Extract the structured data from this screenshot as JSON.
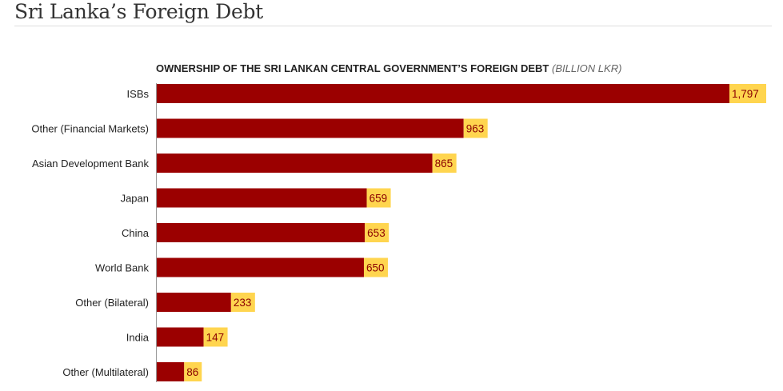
{
  "header": {
    "title": "Sri Lanka’s Foreign Debt"
  },
  "chart_data": {
    "type": "bar",
    "orientation": "horizontal",
    "title": "OWNERSHIP OF THE SRI LANKAN CENTRAL GOVERNMENT’S FOREIGN DEBT",
    "unit": "(BILLION LKR)",
    "categories": [
      "ISBs",
      "Other (Financial Markets)",
      "Asian Development Bank",
      "Japan",
      "China",
      "World Bank",
      "Other (Bilateral)",
      "India",
      "Other (Multilateral)"
    ],
    "values": [
      1797,
      963,
      865,
      659,
      653,
      650,
      233,
      147,
      86
    ],
    "labels": [
      "1,797",
      "963",
      "865",
      "659",
      "653",
      "650",
      "233",
      "147",
      "86"
    ],
    "xlim": [
      0,
      1797
    ],
    "grid": false,
    "colors": {
      "bar": "#9b0000",
      "label_bg": "#ffd54f",
      "label_text": "#8b0000"
    }
  }
}
